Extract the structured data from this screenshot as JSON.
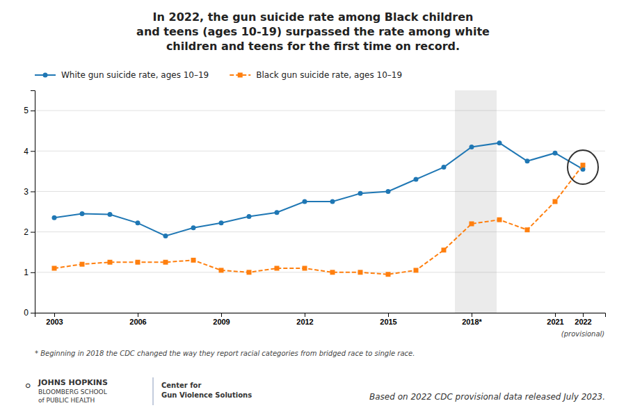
{
  "chart_data": {
    "type": "line",
    "title": "In 2022, the gun suicide rate among Black children\nand teens (ages 10-19) surpassed the rate among white\nchildren and teens for the first time on record.",
    "x": [
      2003,
      2004,
      2005,
      2006,
      2007,
      2008,
      2009,
      2010,
      2011,
      2012,
      2013,
      2014,
      2015,
      2016,
      2017,
      2018,
      2019,
      2020,
      2021,
      2022
    ],
    "series": [
      {
        "name": "White gun suicide rate, ages 10–19",
        "marker": "circle",
        "line_style": "solid",
        "values": [
          2.35,
          2.45,
          2.43,
          2.22,
          1.9,
          2.1,
          2.22,
          2.38,
          2.48,
          2.75,
          2.75,
          2.95,
          3.0,
          3.3,
          3.6,
          4.1,
          4.2,
          3.75,
          3.95,
          3.55
        ]
      },
      {
        "name": "Black gun suicide rate, ages 10–19",
        "marker": "square",
        "line_style": "dashed",
        "values": [
          1.1,
          1.2,
          1.25,
          1.25,
          1.25,
          1.3,
          1.05,
          1.0,
          1.1,
          1.1,
          1.0,
          1.0,
          0.95,
          1.05,
          1.55,
          2.2,
          2.3,
          2.05,
          2.75,
          3.65
        ]
      }
    ],
    "xlim": [
      2002.3,
      2022.8
    ],
    "xticks": [
      2003,
      2006,
      2009,
      2012,
      2015,
      {
        "value": 2018,
        "label": "2018*"
      },
      2021,
      2022
    ],
    "ylim": [
      0,
      5.5
    ],
    "yticks": [
      0,
      1,
      2,
      3,
      4,
      5
    ],
    "grid": true,
    "legend": "upper left",
    "shaded_x": [
      2017.4,
      2018.9
    ],
    "circle": {
      "x": 2022.0,
      "y": 3.6,
      "x_radius": 0.55,
      "y_radius": 0.42
    },
    "annotations": [
      "(provisional)"
    ],
    "footnote": "* Beginning in 2018 the CDC changed the way they report racial categories from bridged race to single race.",
    "credits": [
      "⚪",
      "JOHNS HOPKINS",
      "BLOOMBERG SCHOOL",
      "of PUBLIC HEALTH",
      "Center for",
      "Gun Violence Solutions"
    ],
    "source": "Based on 2022 CDC provisional data released July 2023."
  }
}
